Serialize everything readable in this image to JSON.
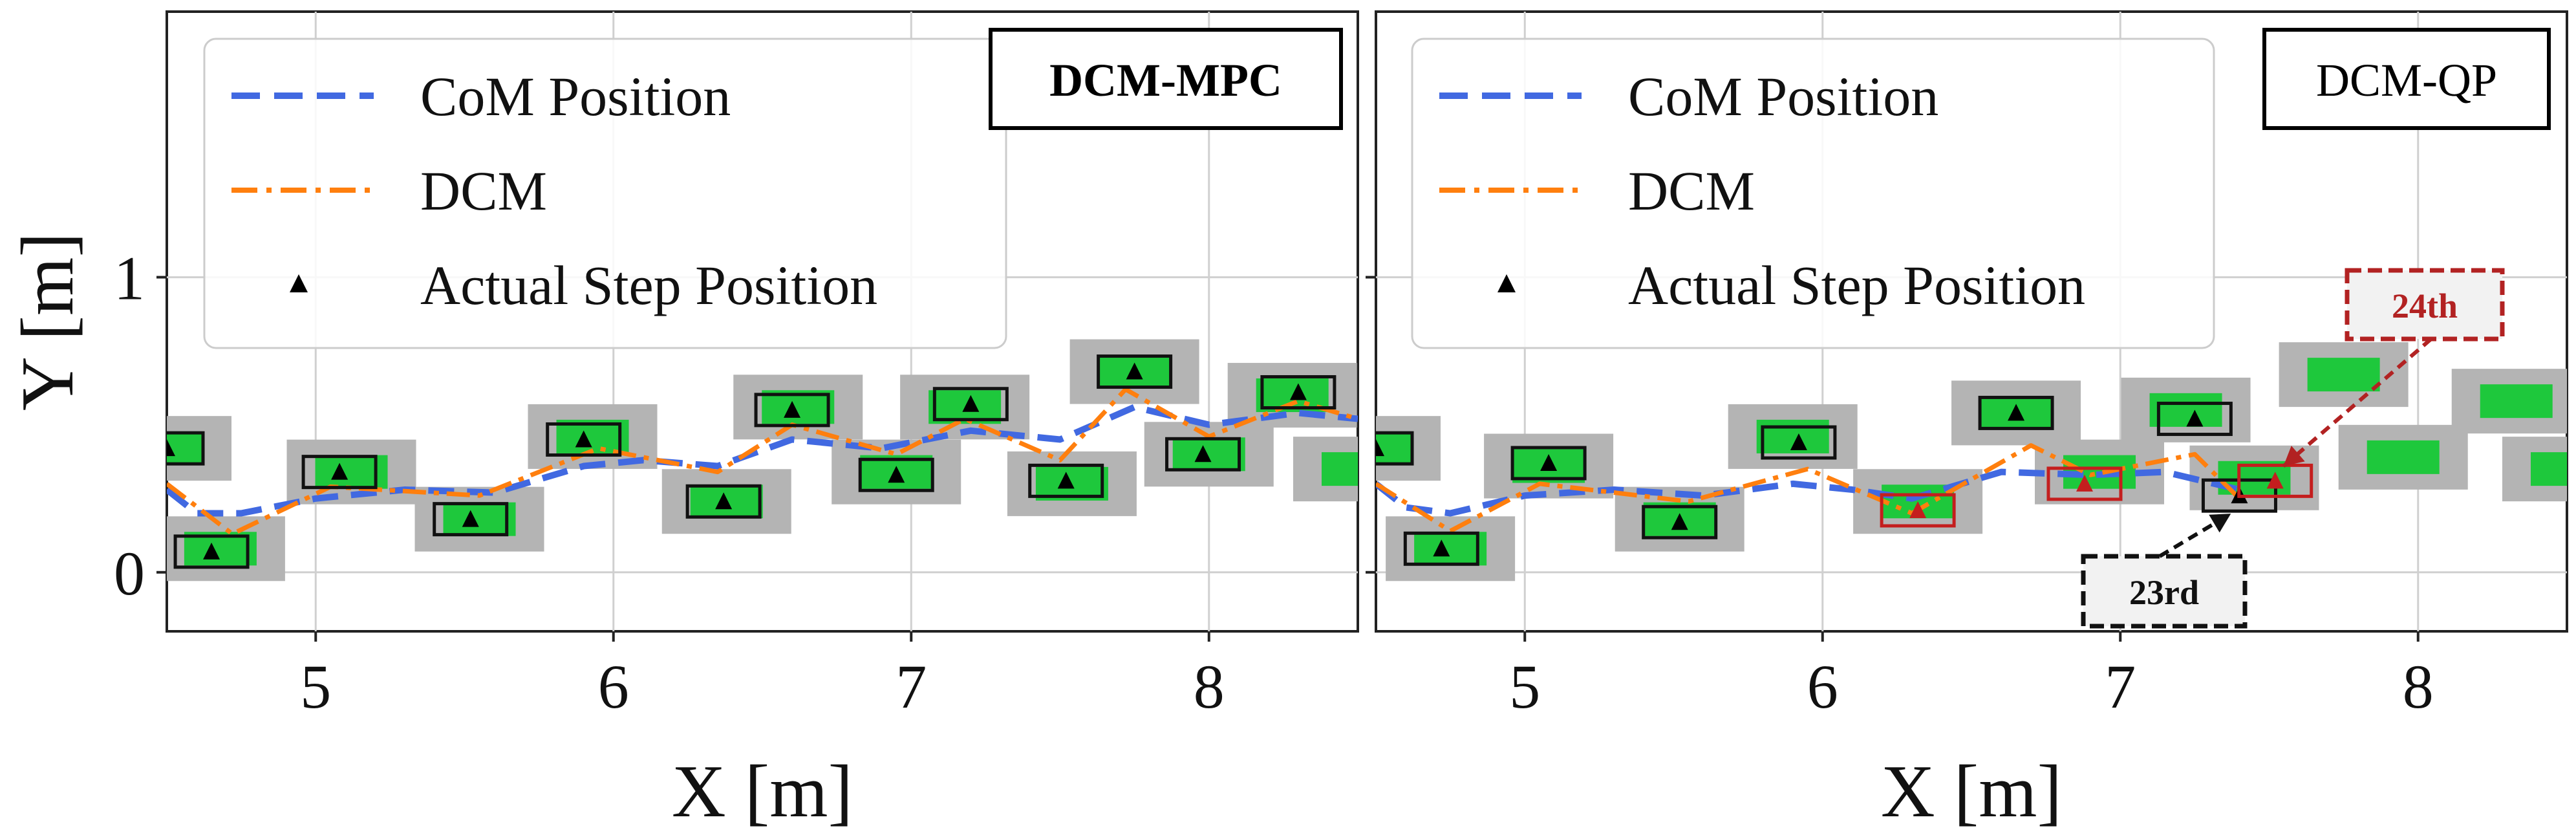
{
  "chart_data": [
    {
      "type": "line",
      "title": "DCM-MPC",
      "xlabel": "X [m]",
      "ylabel": "Y [m]",
      "xlim": [
        4.5,
        8.5
      ],
      "ylim": [
        -0.2,
        1.9
      ],
      "xticks": [
        5,
        6,
        7,
        8
      ],
      "yticks": [
        0,
        1
      ],
      "grid": true,
      "legend_position": "top-left",
      "legend": [
        "CoM Position",
        "DCM",
        "Actual Step Position"
      ],
      "colors": {
        "com": "#4169e1",
        "dcm": "#ff7f0e",
        "step": "#000000",
        "target": "#1ec83c",
        "region": "#b4b4b4"
      },
      "series": [
        {
          "name": "CoM Position",
          "style": "dashed",
          "x": [
            4.5,
            4.6,
            4.75,
            5.0,
            5.3,
            5.6,
            5.9,
            6.1,
            6.35,
            6.6,
            6.9,
            7.2,
            7.5,
            7.75,
            8.0,
            8.3,
            8.5
          ],
          "y": [
            0.28,
            0.2,
            0.2,
            0.25,
            0.28,
            0.27,
            0.36,
            0.38,
            0.36,
            0.45,
            0.42,
            0.48,
            0.45,
            0.56,
            0.5,
            0.54,
            0.52
          ]
        },
        {
          "name": "DCM",
          "style": "dashdot",
          "x": [
            4.5,
            4.72,
            5.05,
            5.55,
            5.95,
            6.35,
            6.6,
            6.95,
            7.18,
            7.5,
            7.72,
            8.0,
            8.3,
            8.5
          ],
          "y": [
            0.3,
            0.13,
            0.29,
            0.26,
            0.42,
            0.34,
            0.5,
            0.4,
            0.52,
            0.38,
            0.62,
            0.46,
            0.58,
            0.52
          ]
        }
      ],
      "actual_steps": {
        "name": "Actual Step Position",
        "x": [
          4.5,
          4.65,
          5.08,
          5.52,
          5.9,
          6.37,
          6.6,
          6.95,
          7.2,
          7.52,
          7.75,
          7.98,
          8.3
        ],
        "y": [
          0.42,
          0.07,
          0.34,
          0.18,
          0.45,
          0.24,
          0.55,
          0.33,
          0.57,
          0.31,
          0.68,
          0.4,
          0.61
        ]
      },
      "target_steps": {
        "x": [
          4.5,
          4.68,
          5.12,
          5.55,
          5.93,
          6.38,
          6.62,
          6.95,
          7.18,
          7.54,
          7.75,
          8.0,
          8.28,
          8.5
        ],
        "y": [
          0.42,
          0.08,
          0.34,
          0.18,
          0.46,
          0.24,
          0.56,
          0.34,
          0.56,
          0.3,
          0.68,
          0.4,
          0.6,
          0.35
        ]
      }
    },
    {
      "type": "line",
      "title": "DCM-QP",
      "xlabel": "X [m]",
      "ylabel": "",
      "xlim": [
        4.5,
        8.5
      ],
      "ylim": [
        -0.2,
        1.9
      ],
      "xticks": [
        5,
        6,
        7,
        8
      ],
      "yticks": [
        0,
        1
      ],
      "grid": true,
      "legend_position": "top-left",
      "legend": [
        "CoM Position",
        "DCM",
        "Actual Step Position"
      ],
      "series": [
        {
          "name": "CoM Position",
          "style": "dashed",
          "x": [
            4.5,
            4.6,
            4.75,
            5.0,
            5.3,
            5.6,
            5.9,
            6.1,
            6.3,
            6.6,
            6.9,
            7.15,
            7.4
          ],
          "y": [
            0.3,
            0.22,
            0.2,
            0.26,
            0.28,
            0.26,
            0.3,
            0.28,
            0.25,
            0.34,
            0.33,
            0.34,
            0.28
          ]
        },
        {
          "name": "DCM",
          "style": "dashdot",
          "x": [
            4.5,
            4.75,
            5.05,
            5.55,
            5.95,
            6.3,
            6.7,
            6.9,
            7.25,
            7.4
          ],
          "y": [
            0.3,
            0.14,
            0.3,
            0.24,
            0.35,
            0.2,
            0.43,
            0.33,
            0.4,
            0.25
          ]
        }
      ],
      "actual_steps": {
        "name": "Actual Step Position",
        "x": [
          4.5,
          4.72,
          5.08,
          5.52,
          5.92,
          6.32,
          6.65,
          6.88,
          7.25,
          7.4,
          7.52
        ],
        "y": [
          0.42,
          0.08,
          0.37,
          0.17,
          0.44,
          0.21,
          0.54,
          0.3,
          0.52,
          0.26,
          0.31
        ]
      },
      "target_steps": {
        "x": [
          4.5,
          4.75,
          5.08,
          5.52,
          5.9,
          6.32,
          6.65,
          6.93,
          7.22,
          7.45,
          7.75,
          7.95,
          8.33,
          8.5
        ],
        "y": [
          0.42,
          0.08,
          0.36,
          0.18,
          0.46,
          0.24,
          0.54,
          0.34,
          0.55,
          0.32,
          0.67,
          0.39,
          0.58,
          0.35
        ]
      },
      "failed_steps": {
        "x": [
          6.32,
          6.88,
          7.52
        ],
        "y": [
          0.21,
          0.3,
          0.31
        ]
      },
      "annotations": [
        {
          "text": "24th",
          "color": "#b22222",
          "x": 7.5,
          "y": 0.32
        },
        {
          "text": "23rd",
          "color": "#111111",
          "x": 7.38,
          "y": 0.26
        }
      ]
    }
  ]
}
